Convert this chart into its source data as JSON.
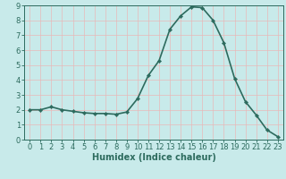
{
  "x": [
    0,
    1,
    2,
    3,
    4,
    5,
    6,
    7,
    8,
    9,
    10,
    11,
    12,
    13,
    14,
    15,
    16,
    17,
    18,
    19,
    20,
    21,
    22,
    23
  ],
  "y": [
    2.0,
    2.0,
    2.2,
    2.0,
    1.9,
    1.8,
    1.75,
    1.75,
    1.7,
    1.85,
    2.75,
    4.3,
    5.3,
    7.4,
    8.3,
    8.9,
    8.85,
    8.0,
    6.5,
    4.1,
    2.55,
    1.65,
    0.65,
    0.2
  ],
  "line_color": "#2d6b5e",
  "marker": "D",
  "markersize": 2.2,
  "linewidth": 1.2,
  "bg_color": "#c8eaea",
  "grid_color": "#e8b8b8",
  "axis_color": "#2d6b5e",
  "xlabel": "Humidex (Indice chaleur)",
  "xlabel_fontsize": 7,
  "tick_fontsize": 6,
  "ylim": [
    0,
    9
  ],
  "xlim": [
    -0.5,
    23.5
  ],
  "yticks": [
    0,
    1,
    2,
    3,
    4,
    5,
    6,
    7,
    8,
    9
  ],
  "xticks": [
    0,
    1,
    2,
    3,
    4,
    5,
    6,
    7,
    8,
    9,
    10,
    11,
    12,
    13,
    14,
    15,
    16,
    17,
    18,
    19,
    20,
    21,
    22,
    23
  ]
}
